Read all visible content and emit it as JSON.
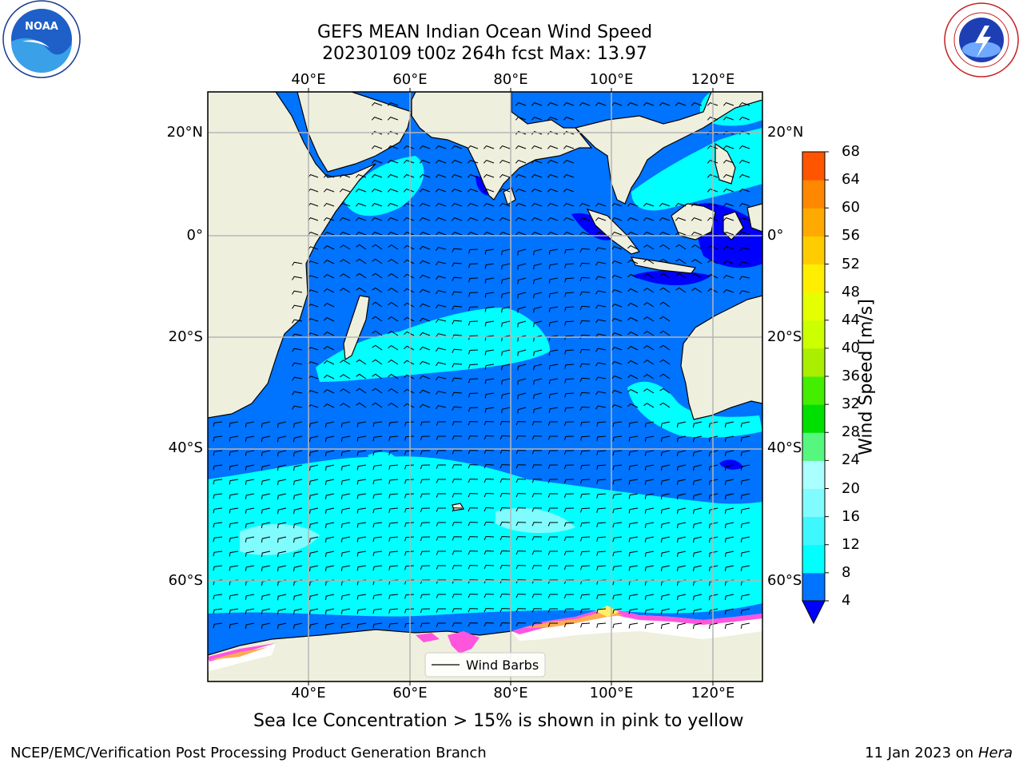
{
  "title": {
    "line1": "GEFS MEAN Indian Ocean Wind Speed",
    "line2": "20230109 t00z 264h fcst   Max: 13.97"
  },
  "logos": {
    "left": {
      "name": "noaa-logo",
      "text": "NOAA",
      "ring_text": "NATIONAL OCEANIC AND ATMOSPHERIC ADMINISTRATION · U.S. DEPARTMENT OF COMMERCE"
    },
    "right": {
      "name": "nws-logo",
      "ring_text": "NATIONAL WEATHER SERVICE"
    }
  },
  "map": {
    "lon_ticks": [
      "40°E",
      "60°E",
      "80°E",
      "100°E",
      "120°E"
    ],
    "lat_ticks": [
      "20°N",
      "0°",
      "20°S",
      "40°S",
      "60°S"
    ],
    "legend": {
      "label": "Wind Barbs"
    },
    "colors": {
      "land": "#efefde",
      "sea_ice_white": "#ffffff",
      "sea_ice_pink": "#ff55dd",
      "sea_ice_orange": "#ffaa55",
      "sea_ice_yellow": "#ffee66",
      "grid": "#b5b5b5"
    }
  },
  "colorbar": {
    "label": "Wind Speed [m/s]",
    "ticks": [
      "4",
      "8",
      "12",
      "16",
      "20",
      "24",
      "28",
      "32",
      "36",
      "40",
      "44",
      "48",
      "52",
      "56",
      "60",
      "64",
      "68"
    ],
    "extend_color": "#0000ff",
    "colors": [
      "#0073ff",
      "#00ffff",
      "#3ff8ff",
      "#80fcff",
      "#aaffff",
      "#55f77f",
      "#00e000",
      "#44ee00",
      "#aaee00",
      "#ccff00",
      "#e5ff00",
      "#ffee00",
      "#ffcc00",
      "#ffaa00",
      "#ff8800",
      "#ff5500",
      "#ff2200",
      "#ff0000"
    ]
  },
  "note": "Sea Ice Concentration > 15% is shown in pink to yellow",
  "footer": {
    "left": "NCEP/EMC/Verification Post Processing Product Generation Branch",
    "right_date": "11 Jan 2023 on ",
    "right_host": "Hera"
  }
}
